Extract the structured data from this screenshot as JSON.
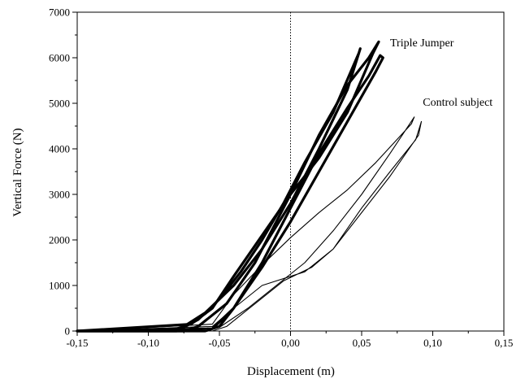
{
  "chart_data": {
    "type": "line",
    "title": "",
    "xlabel": "Displacement (m)",
    "ylabel": "Vertical Force (N)",
    "xlim": [
      -0.15,
      0.15
    ],
    "ylim": [
      0,
      7000
    ],
    "x_ticks": [
      -0.15,
      -0.1,
      -0.05,
      0.0,
      0.05,
      0.1,
      0.15
    ],
    "x_tick_labels": [
      "-0,15",
      "-0,10",
      "-0,05",
      "0,00",
      "0,05",
      "0,10",
      "0,15"
    ],
    "y_ticks": [
      0,
      1000,
      2000,
      3000,
      4000,
      5000,
      6000,
      7000
    ],
    "y_tick_labels": [
      "0",
      "1000",
      "2000",
      "3000",
      "4000",
      "5000",
      "6000",
      "7000"
    ],
    "reference_line_x": 0.0,
    "grid": false,
    "legend": "none",
    "annotations": [
      {
        "text": "Triple Jumper",
        "x": 0.07,
        "y": 6250
      },
      {
        "text": "Control subject",
        "x": 0.093,
        "y": 4950
      }
    ],
    "series": [
      {
        "group": "Triple Jumper",
        "line_weight": "thick",
        "loops": [
          {
            "x": [
              -0.15,
              -0.085,
              -0.075,
              -0.06,
              -0.04,
              -0.02,
              0.0,
              0.02,
              0.04,
              0.049,
              0.048,
              0.03,
              0.01,
              -0.005,
              -0.02,
              -0.035,
              -0.05,
              -0.065,
              -0.08,
              -0.15
            ],
            "y": [
              0,
              0,
              100,
              400,
              1000,
              1800,
              2800,
              4000,
              5300,
              6200,
              6100,
              4800,
              3700,
              2800,
              2000,
              1300,
              700,
              250,
              0,
              0
            ]
          },
          {
            "x": [
              -0.15,
              -0.075,
              -0.065,
              -0.045,
              -0.025,
              0.0,
              0.02,
              0.04,
              0.055,
              0.062,
              0.058,
              0.04,
              0.02,
              0.0,
              -0.02,
              -0.04,
              -0.055,
              -0.07,
              -0.15
            ],
            "y": [
              0,
              0,
              100,
              600,
              1500,
              3000,
              4300,
              5400,
              6000,
              6350,
              6100,
              4800,
              3800,
              3000,
              2100,
              1200,
              500,
              150,
              0
            ]
          },
          {
            "x": [
              -0.15,
              -0.06,
              -0.05,
              -0.04,
              -0.02,
              0.0,
              0.02,
              0.04,
              0.055,
              0.063,
              0.065,
              0.06,
              0.04,
              0.02,
              0.0,
              -0.02,
              -0.04,
              -0.055,
              -0.15
            ],
            "y": [
              0,
              0,
              100,
              500,
              1500,
              2700,
              3900,
              4900,
              5600,
              6050,
              6000,
              5700,
              4600,
              3500,
              2400,
              1400,
              500,
              50,
              0
            ]
          }
        ]
      },
      {
        "group": "Control subject",
        "line_weight": "thin",
        "loops": [
          {
            "x": [
              -0.15,
              -0.06,
              -0.05,
              -0.03,
              -0.01,
              0.01,
              0.03,
              0.05,
              0.07,
              0.087,
              0.085,
              0.06,
              0.04,
              0.02,
              0.0,
              -0.02,
              -0.04,
              -0.055,
              -0.15
            ],
            "y": [
              0,
              0,
              80,
              500,
              1000,
              1500,
              2200,
              3000,
              3900,
              4700,
              4550,
              3700,
              3100,
              2600,
              2050,
              1450,
              800,
              150,
              0
            ]
          },
          {
            "x": [
              -0.15,
              -0.055,
              -0.045,
              -0.025,
              -0.005,
              0.015,
              0.03,
              0.05,
              0.07,
              0.088,
              0.092,
              0.09,
              0.07,
              0.05,
              0.03,
              0.01,
              -0.01,
              -0.02,
              -0.04,
              -0.055,
              -0.15
            ],
            "y": [
              0,
              0,
              100,
              600,
              1100,
              1400,
              1800,
              2700,
              3500,
              4200,
              4600,
              4300,
              3400,
              2600,
              1800,
              1300,
              1100,
              1000,
              500,
              100,
              0
            ]
          }
        ]
      }
    ]
  }
}
